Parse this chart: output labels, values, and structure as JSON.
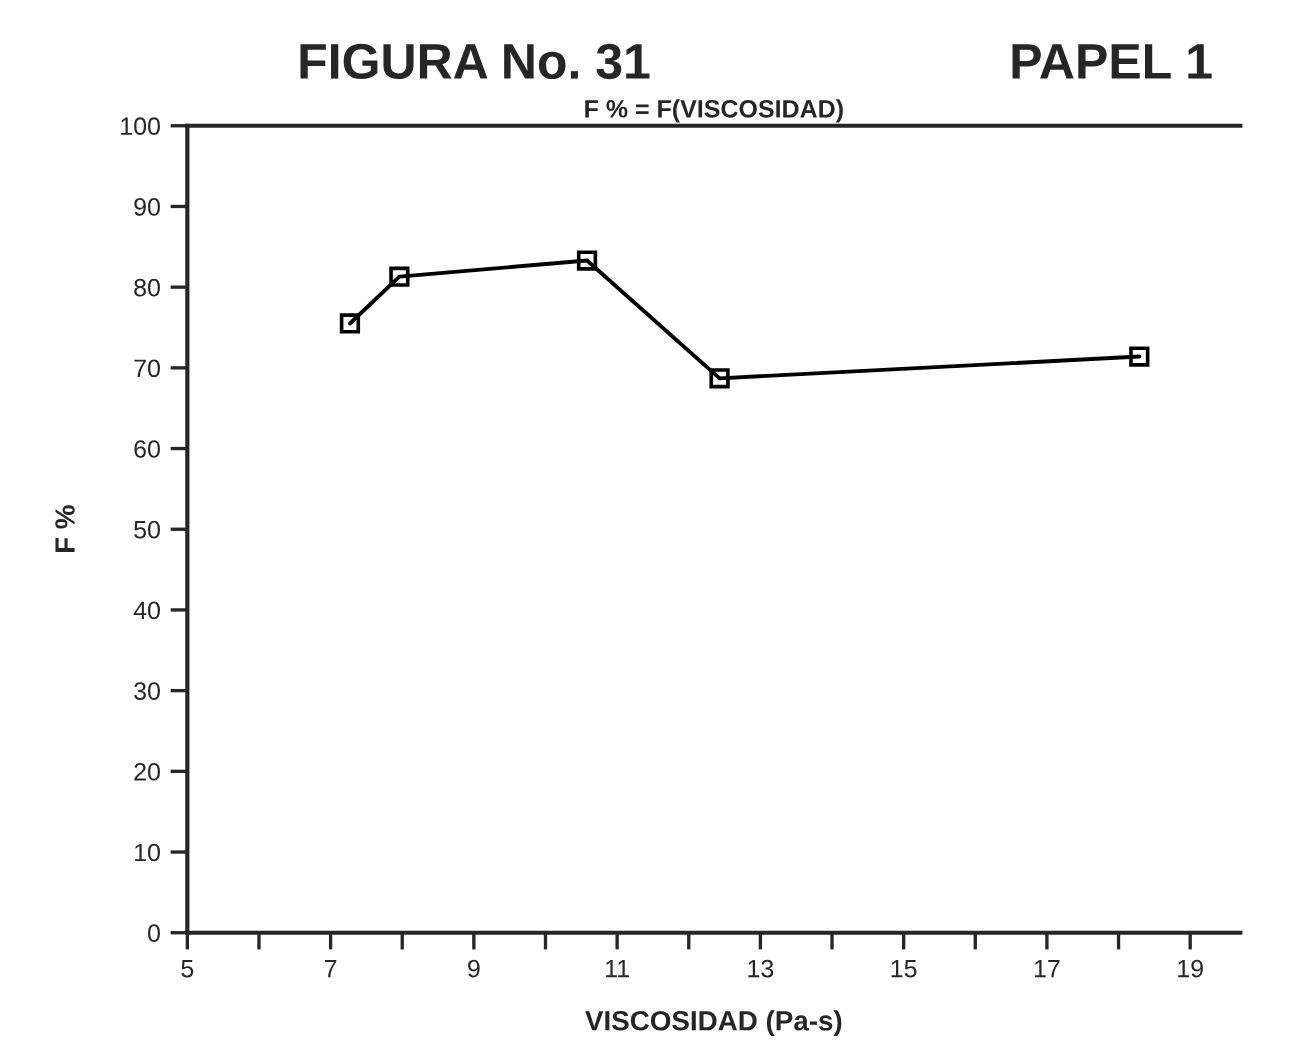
{
  "chart_data": {
    "type": "line",
    "title": "FIGURA No. 31",
    "subtitle": "F % = F(VISCOSIDAD)",
    "xlabel": "VISCOSIDAD (Pa-s)",
    "ylabel": "F %",
    "annotations": [
      "PAPEL 1"
    ],
    "x": [
      7.27,
      7.96,
      10.58,
      12.43,
      18.29
    ],
    "series": [
      {
        "color": "#000000",
        "values": [
          75.5,
          81.3,
          83.3,
          68.7,
          71.4
        ]
      }
    ],
    "marker": "square",
    "line_style": "solid",
    "xlim": [
      5,
      19.7
    ],
    "xticks": [
      5,
      {
        "value": 6,
        "label": null
      },
      7,
      {
        "value": 8,
        "label": null
      },
      9,
      {
        "value": 10,
        "label": null
      },
      11,
      {
        "value": 12,
        "label": null
      },
      13,
      {
        "value": 14,
        "label": null
      },
      15,
      {
        "value": 16,
        "label": null
      },
      17,
      {
        "value": 18,
        "label": null
      },
      19
    ],
    "ylim": [
      0,
      100
    ],
    "yticks": [
      0,
      10,
      20,
      30,
      40,
      50,
      60,
      70,
      80,
      90,
      100
    ],
    "grid": false,
    "legend": false
  }
}
